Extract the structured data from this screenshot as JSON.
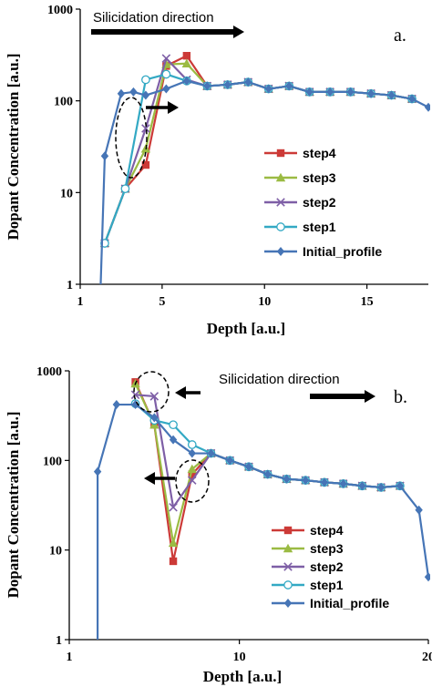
{
  "chart_data": [
    {
      "type": "line",
      "panel_label": "a.",
      "annotation": "Silicidation direction",
      "xlabel": "Depth [a.u.]",
      "ylabel": "Dopant Concentration [a.u.]",
      "xlim": [
        1,
        18
      ],
      "ylim": [
        1,
        1000
      ],
      "yscale": "log",
      "xticks": [
        "1",
        "5",
        "10",
        "15"
      ],
      "xtick_values": [
        1,
        5,
        10,
        15
      ],
      "yticks": [
        "1",
        "10",
        "100",
        "1000"
      ],
      "ytick_values": [
        1,
        10,
        100,
        1000
      ],
      "legend": "center-right",
      "grid": false,
      "series": [
        {
          "name": "step4",
          "color": "#cc3a37",
          "marker": "square",
          "x": [
            2.2,
            3.2,
            4.2,
            5.2,
            6.2,
            7.2,
            8.2,
            9.2,
            10.2,
            11.2,
            12.2,
            13.2,
            14.2,
            15.2,
            16.2,
            17.2
          ],
          "y": [
            2.8,
            11,
            20,
            240,
            310,
            145,
            150,
            160,
            135,
            145,
            125,
            125,
            125,
            120,
            115,
            105
          ]
        },
        {
          "name": "step3",
          "color": "#9bbb43",
          "marker": "triangle",
          "x": [
            2.2,
            3.2,
            4.2,
            5.2,
            6.2,
            7.2,
            8.2,
            9.2,
            10.2,
            11.2,
            12.2,
            13.2,
            14.2,
            15.2,
            16.2,
            17.2
          ],
          "y": [
            2.8,
            11,
            30,
            250,
            255,
            145,
            150,
            160,
            135,
            145,
            125,
            125,
            125,
            120,
            115,
            105
          ]
        },
        {
          "name": "step2",
          "color": "#7e5fa6",
          "marker": "x",
          "x": [
            2.2,
            3.2,
            4.2,
            5.2,
            6.2,
            7.2,
            8.2,
            9.2,
            10.2,
            11.2,
            12.2,
            13.2,
            14.2,
            15.2,
            16.2,
            17.2
          ],
          "y": [
            2.8,
            11,
            50,
            290,
            170,
            145,
            150,
            160,
            135,
            145,
            125,
            125,
            125,
            120,
            115,
            105
          ]
        },
        {
          "name": "step1",
          "color": "#33a9c4",
          "marker": "circle",
          "x": [
            2.2,
            3.2,
            4.2,
            5.2,
            6.2,
            7.2,
            8.2,
            9.2,
            10.2,
            11.2,
            12.2,
            13.2,
            14.2,
            15.2,
            16.2,
            17.2
          ],
          "y": [
            2.8,
            11,
            170,
            195,
            165,
            145,
            150,
            160,
            135,
            145,
            125,
            125,
            125,
            120,
            115,
            105
          ]
        },
        {
          "name": "Initial_profile",
          "color": "#4675b6",
          "marker": "diamond",
          "x": [
            2.0,
            2.2,
            3.0,
            3.6,
            4.2,
            5.2,
            6.2,
            7.2,
            8.2,
            9.2,
            10.2,
            11.2,
            12.2,
            13.2,
            14.2,
            15.2,
            16.2,
            17.2,
            18.0
          ],
          "y": [
            0.9,
            25,
            120,
            125,
            115,
            135,
            165,
            145,
            150,
            160,
            135,
            145,
            125,
            125,
            125,
            120,
            115,
            105,
            85
          ]
        }
      ]
    },
    {
      "type": "line",
      "panel_label": "b.",
      "annotation": "Silicidation direction",
      "xlabel": "Depth [a.u.]",
      "ylabel": "Dopant Concentration [a.u.]",
      "xlim": [
        1,
        20
      ],
      "ylim": [
        1,
        1000
      ],
      "yscale": "log",
      "xticks": [
        "1",
        "10",
        "20"
      ],
      "xtick_values": [
        1,
        10,
        20
      ],
      "yticks": [
        "1",
        "10",
        "100",
        "1000"
      ],
      "ytick_values": [
        1,
        10,
        100,
        1000
      ],
      "legend": "bottom-right",
      "grid": false,
      "series": [
        {
          "name": "step4",
          "color": "#cc3a37",
          "marker": "square",
          "x": [
            4.5,
            5.5,
            6.5,
            7.5,
            8.5,
            9.5,
            10.5,
            11.5,
            12.5,
            13.5,
            14.5,
            15.5,
            16.5,
            17.5,
            18.5
          ],
          "y": [
            750,
            250,
            7.5,
            70,
            120,
            100,
            85,
            70,
            62,
            60,
            57,
            55,
            52,
            50,
            52
          ]
        },
        {
          "name": "step3",
          "color": "#9bbb43",
          "marker": "triangle",
          "x": [
            4.5,
            5.5,
            6.5,
            7.5,
            8.5,
            9.5,
            10.5,
            11.5,
            12.5,
            13.5,
            14.5,
            15.5,
            16.5,
            17.5,
            18.5
          ],
          "y": [
            720,
            250,
            12,
            80,
            120,
            100,
            85,
            70,
            62,
            60,
            57,
            55,
            52,
            50,
            52
          ]
        },
        {
          "name": "step2",
          "color": "#7e5fa6",
          "marker": "x",
          "x": [
            4.5,
            5.5,
            6.5,
            7.5,
            8.5,
            9.5,
            10.5,
            11.5,
            12.5,
            13.5,
            14.5,
            15.5,
            16.5,
            17.5,
            18.5
          ],
          "y": [
            540,
            520,
            30,
            60,
            120,
            100,
            85,
            70,
            62,
            60,
            57,
            55,
            52,
            50,
            52
          ]
        },
        {
          "name": "step1",
          "color": "#33a9c4",
          "marker": "circle",
          "x": [
            4.5,
            5.5,
            6.5,
            7.5,
            8.5,
            9.5,
            10.5,
            11.5,
            12.5,
            13.5,
            14.5,
            15.5,
            16.5,
            17.5,
            18.5
          ],
          "y": [
            430,
            280,
            250,
            150,
            120,
            100,
            85,
            70,
            62,
            60,
            57,
            55,
            52,
            50,
            52
          ]
        },
        {
          "name": "Initial_profile",
          "color": "#4675b6",
          "marker": "diamond",
          "x": [
            2.5,
            2.5,
            3.5,
            4.5,
            5.5,
            6.5,
            7.5,
            8.5,
            9.5,
            10.5,
            11.5,
            12.5,
            13.5,
            14.5,
            15.5,
            16.5,
            17.5,
            18.5,
            19.5,
            20.0
          ],
          "y": [
            1,
            75,
            420,
            420,
            300,
            170,
            120,
            120,
            100,
            85,
            70,
            62,
            60,
            57,
            55,
            52,
            50,
            52,
            28,
            5
          ]
        }
      ]
    }
  ]
}
